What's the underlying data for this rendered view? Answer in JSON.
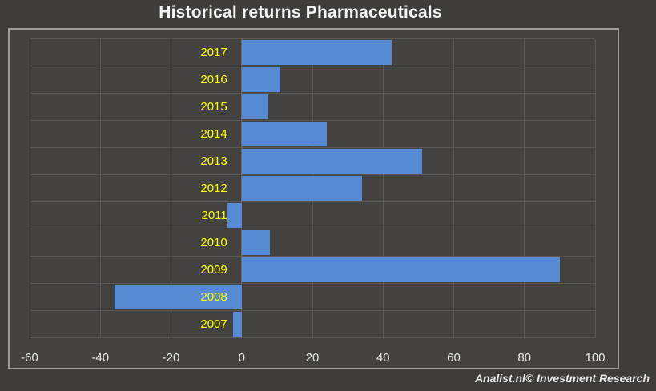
{
  "header": {
    "title": "Historical returns Pharmaceuticals"
  },
  "footer": {
    "watermark": "Analist.nl© Investment Research"
  },
  "colors": {
    "background": "#3e3d3c",
    "plot_background": "#434241",
    "frame_border": "#9e9e9e",
    "gridline": "#5a5856",
    "bar_fill": "#568ad2",
    "category_label": "#ffff00",
    "tick_label": "#e8e8e8",
    "title_text": "#f4f4f4"
  },
  "chart_data": {
    "type": "bar",
    "orientation": "horizontal",
    "title": "Historical returns Pharmaceuticals",
    "xlabel": "",
    "ylabel": "",
    "categories": [
      "2017",
      "2016",
      "2015",
      "2014",
      "2013",
      "2012",
      "2011",
      "2010",
      "2009",
      "2008",
      "2007"
    ],
    "values": [
      42.5,
      11,
      7.5,
      24,
      51,
      34,
      -4,
      8,
      90,
      -36,
      -2.5
    ],
    "unit": "percent",
    "xlim": [
      -60,
      100
    ],
    "x_ticks": [
      -60,
      -40,
      -20,
      0,
      20,
      40,
      60,
      80,
      100
    ],
    "grid": true,
    "legend": false
  }
}
